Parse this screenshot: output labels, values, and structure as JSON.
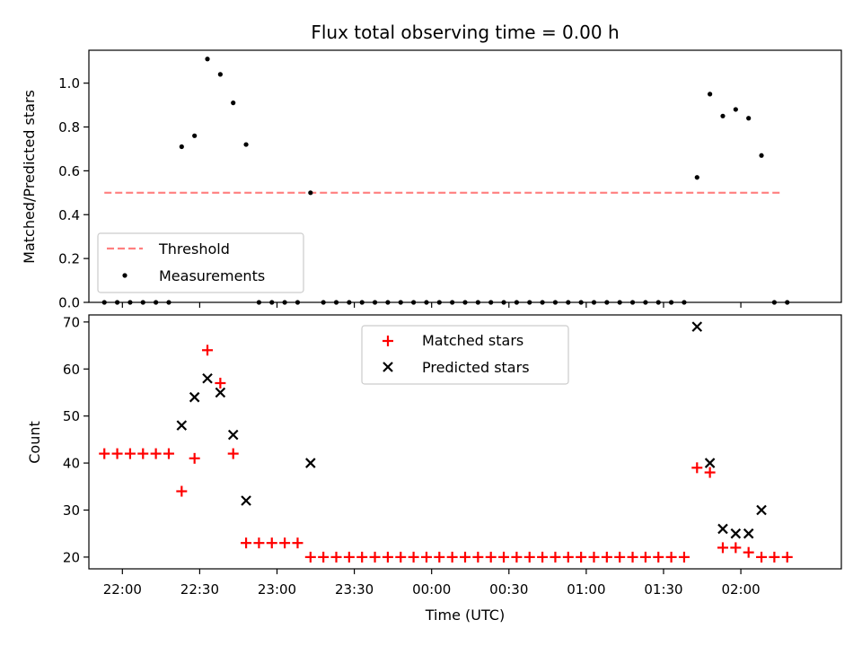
{
  "chart_data": [
    {
      "type": "scatter",
      "title": "Flux total observing time = 0.00 h",
      "xlabel": "",
      "ylabel": "Matched/Predicted stars",
      "ylim": [
        0,
        1.15
      ],
      "yticks": [
        0.0,
        0.2,
        0.4,
        0.6,
        0.8,
        1.0
      ],
      "ytick_labels": [
        "0.0",
        "0.2",
        "0.4",
        "0.6",
        "0.8",
        "1.0"
      ],
      "xlim": [
        "21:47",
        "02:39"
      ],
      "legend": {
        "position": "bottom-left",
        "entries": [
          "Threshold",
          "Measurements"
        ]
      },
      "threshold": {
        "name": "Threshold",
        "value": 0.5,
        "x_start": "21:53",
        "x_end": "02:16",
        "color": "#ff7f7f",
        "style": "dashed"
      },
      "series": [
        {
          "name": "Measurements",
          "marker": "dot",
          "color": "#000000",
          "points": [
            [
              "21:53",
              0.0
            ],
            [
              "21:58",
              0.0
            ],
            [
              "22:03",
              0.0
            ],
            [
              "22:08",
              0.0
            ],
            [
              "22:13",
              0.0
            ],
            [
              "22:18",
              0.0
            ],
            [
              "22:23",
              0.71
            ],
            [
              "22:28",
              0.76
            ],
            [
              "22:33",
              1.11
            ],
            [
              "22:38",
              1.04
            ],
            [
              "22:43",
              0.91
            ],
            [
              "22:48",
              0.72
            ],
            [
              "22:53",
              0.0
            ],
            [
              "22:58",
              0.0
            ],
            [
              "23:03",
              0.0
            ],
            [
              "23:08",
              0.0
            ],
            [
              "23:13",
              0.5
            ],
            [
              "23:18",
              0.0
            ],
            [
              "23:23",
              0.0
            ],
            [
              "23:28",
              0.0
            ],
            [
              "23:33",
              0.0
            ],
            [
              "23:38",
              0.0
            ],
            [
              "23:43",
              0.0
            ],
            [
              "23:48",
              0.0
            ],
            [
              "23:53",
              0.0
            ],
            [
              "23:58",
              0.0
            ],
            [
              "00:03",
              0.0
            ],
            [
              "00:08",
              0.0
            ],
            [
              "00:13",
              0.0
            ],
            [
              "00:18",
              0.0
            ],
            [
              "00:23",
              0.0
            ],
            [
              "00:28",
              0.0
            ],
            [
              "00:33",
              0.0
            ],
            [
              "00:38",
              0.0
            ],
            [
              "00:43",
              0.0
            ],
            [
              "00:48",
              0.0
            ],
            [
              "00:53",
              0.0
            ],
            [
              "00:58",
              0.0
            ],
            [
              "01:03",
              0.0
            ],
            [
              "01:08",
              0.0
            ],
            [
              "01:13",
              0.0
            ],
            [
              "01:18",
              0.0
            ],
            [
              "01:23",
              0.0
            ],
            [
              "01:28",
              0.0
            ],
            [
              "01:33",
              0.0
            ],
            [
              "01:38",
              0.0
            ],
            [
              "01:43",
              0.57
            ],
            [
              "01:48",
              0.95
            ],
            [
              "01:53",
              0.85
            ],
            [
              "01:58",
              0.88
            ],
            [
              "02:03",
              0.84
            ],
            [
              "02:08",
              0.67
            ],
            [
              "02:13",
              0.0
            ],
            [
              "02:18",
              0.0
            ]
          ]
        }
      ]
    },
    {
      "type": "scatter",
      "title": "",
      "xlabel": "Time (UTC)",
      "ylabel": "Count",
      "ylim": [
        17.5,
        71.5
      ],
      "yticks": [
        20,
        30,
        40,
        50,
        60,
        70
      ],
      "ytick_labels": [
        "20",
        "30",
        "40",
        "50",
        "60",
        "70"
      ],
      "xlim": [
        "21:47",
        "02:39"
      ],
      "xticks": [
        "22:00",
        "22:30",
        "23:00",
        "23:30",
        "00:00",
        "00:30",
        "01:00",
        "01:30",
        "02:00"
      ],
      "xtick_labels": [
        "22:00",
        "22:30",
        "23:00",
        "23:30",
        "00:00",
        "00:30",
        "01:00",
        "01:30",
        "02:00"
      ],
      "legend": {
        "position": "upper-center",
        "entries": [
          "Matched stars",
          "Predicted stars"
        ]
      },
      "series": [
        {
          "name": "Matched stars",
          "marker": "plus",
          "color": "#ff0000",
          "points": [
            [
              "21:53",
              42
            ],
            [
              "21:58",
              42
            ],
            [
              "22:03",
              42
            ],
            [
              "22:08",
              42
            ],
            [
              "22:13",
              42
            ],
            [
              "22:18",
              42
            ],
            [
              "22:23",
              34
            ],
            [
              "22:28",
              41
            ],
            [
              "22:33",
              64
            ],
            [
              "22:38",
              57
            ],
            [
              "22:43",
              42
            ],
            [
              "22:48",
              23
            ],
            [
              "22:53",
              23
            ],
            [
              "22:58",
              23
            ],
            [
              "23:03",
              23
            ],
            [
              "23:08",
              23
            ],
            [
              "23:13",
              20
            ],
            [
              "23:18",
              20
            ],
            [
              "23:23",
              20
            ],
            [
              "23:28",
              20
            ],
            [
              "23:33",
              20
            ],
            [
              "23:38",
              20
            ],
            [
              "23:43",
              20
            ],
            [
              "23:48",
              20
            ],
            [
              "23:53",
              20
            ],
            [
              "23:58",
              20
            ],
            [
              "00:03",
              20
            ],
            [
              "00:08",
              20
            ],
            [
              "00:13",
              20
            ],
            [
              "00:18",
              20
            ],
            [
              "00:23",
              20
            ],
            [
              "00:28",
              20
            ],
            [
              "00:33",
              20
            ],
            [
              "00:38",
              20
            ],
            [
              "00:43",
              20
            ],
            [
              "00:48",
              20
            ],
            [
              "00:53",
              20
            ],
            [
              "00:58",
              20
            ],
            [
              "01:03",
              20
            ],
            [
              "01:08",
              20
            ],
            [
              "01:13",
              20
            ],
            [
              "01:18",
              20
            ],
            [
              "01:23",
              20
            ],
            [
              "01:28",
              20
            ],
            [
              "01:33",
              20
            ],
            [
              "01:38",
              20
            ],
            [
              "01:43",
              39
            ],
            [
              "01:48",
              38
            ],
            [
              "01:53",
              22
            ],
            [
              "01:58",
              22
            ],
            [
              "02:03",
              21
            ],
            [
              "02:08",
              20
            ],
            [
              "02:13",
              20
            ],
            [
              "02:18",
              20
            ]
          ]
        },
        {
          "name": "Predicted stars",
          "marker": "x",
          "color": "#000000",
          "points": [
            [
              "22:23",
              48
            ],
            [
              "22:28",
              54
            ],
            [
              "22:33",
              58
            ],
            [
              "22:38",
              55
            ],
            [
              "22:43",
              46
            ],
            [
              "22:48",
              32
            ],
            [
              "23:13",
              40
            ],
            [
              "01:43",
              69
            ],
            [
              "01:48",
              40
            ],
            [
              "01:53",
              26
            ],
            [
              "01:58",
              25
            ],
            [
              "02:03",
              25
            ],
            [
              "02:08",
              30
            ]
          ]
        }
      ]
    }
  ]
}
